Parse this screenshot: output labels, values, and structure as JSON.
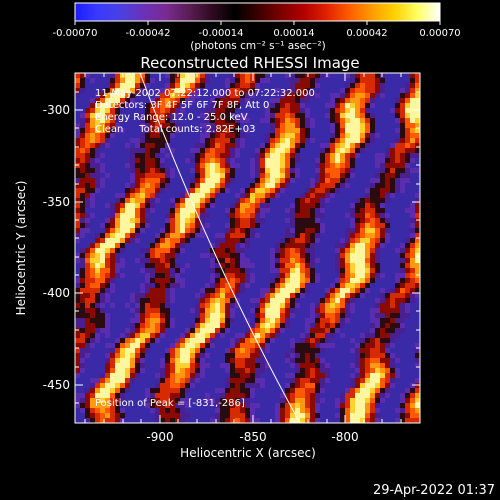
{
  "colorbar": {
    "ticks": [
      "-0.00070",
      "-0.00042",
      "-0.00014",
      "0.00014",
      "0.00042",
      "0.00070"
    ],
    "unit_label": "(photons cm⁻² s⁻¹ asec⁻²)",
    "stops": [
      "#1c1cff",
      "#3a3aff",
      "#4a40e0",
      "#6a32b8",
      "#7a2a90",
      "#5a1d55",
      "#300a20",
      "#000000",
      "#3a0000",
      "#7a0000",
      "#b00000",
      "#e02000",
      "#ff5a00",
      "#ff9a00",
      "#ffd000",
      "#ffff60",
      "#ffffff"
    ]
  },
  "title": "Reconstructed RHESSI Image",
  "info": {
    "line1": "11-May-2002 07:22:12.000 to 07:22:32.000",
    "line2": "Detectors: 3F 4F 5F 6F 7F 8F, Att 0",
    "line3": "Energy Range: 12.0 - 25.0 keV",
    "line4": "Clean     Total counts: 2.82E+03",
    "peak": "Position of Peak = [-831,-286]"
  },
  "axes": {
    "x_label": "Heliocentric X (arcsec)",
    "y_label": "Heliocentric Y (arcsec)",
    "x_ticks": [
      "-900",
      "-850",
      "-800"
    ],
    "y_ticks": [
      "-300",
      "-350",
      "-400",
      "-450"
    ]
  },
  "timestamp": "29-Apr-2022 01:37",
  "colors": {
    "background": "#000000",
    "foreground": "#ffffff",
    "limb_line": "#ffffff"
  }
}
